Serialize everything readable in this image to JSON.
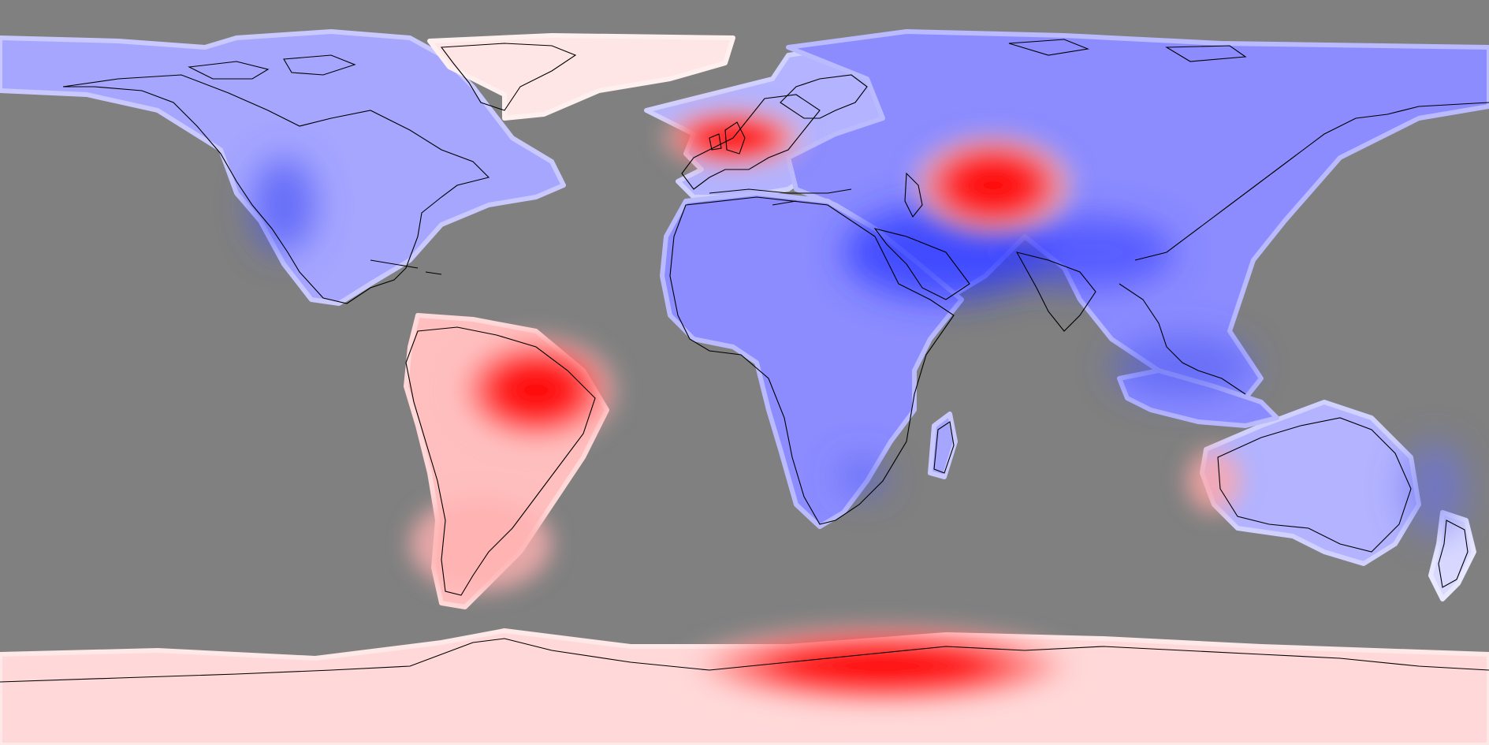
{
  "map": {
    "projection": "equirectangular",
    "ocean_color": "#808080",
    "coastline_color": "#000000",
    "color_scale": {
      "negative": "#0000ff",
      "neutral": "#ffffff",
      "positive": "#ff0000"
    },
    "regions": [
      {
        "name": "north-america",
        "anomaly": -0.35
      },
      {
        "name": "greenland",
        "anomaly": 0.1
      },
      {
        "name": "europe",
        "anomaly": -0.3
      },
      {
        "name": "asia",
        "anomaly": -0.45
      },
      {
        "name": "south-america",
        "anomaly": 0.25
      },
      {
        "name": "africa",
        "anomaly": -0.45
      },
      {
        "name": "australia",
        "anomaly": -0.3
      },
      {
        "name": "antarctica",
        "anomaly": 0.15
      }
    ],
    "hotspots": [
      {
        "name": "british-isles",
        "anomaly": 1.0
      },
      {
        "name": "central-asia",
        "anomaly": 0.85
      },
      {
        "name": "amazon",
        "anomaly": 1.0
      },
      {
        "name": "antarctic-peninsula",
        "anomaly": 0.9
      }
    ],
    "coldspots": [
      {
        "name": "middle-east",
        "anomaly": -1.0
      },
      {
        "name": "south-asia",
        "anomaly": -0.8
      },
      {
        "name": "rockies",
        "anomaly": -0.6
      },
      {
        "name": "southern-africa",
        "anomaly": -0.6
      }
    ]
  }
}
